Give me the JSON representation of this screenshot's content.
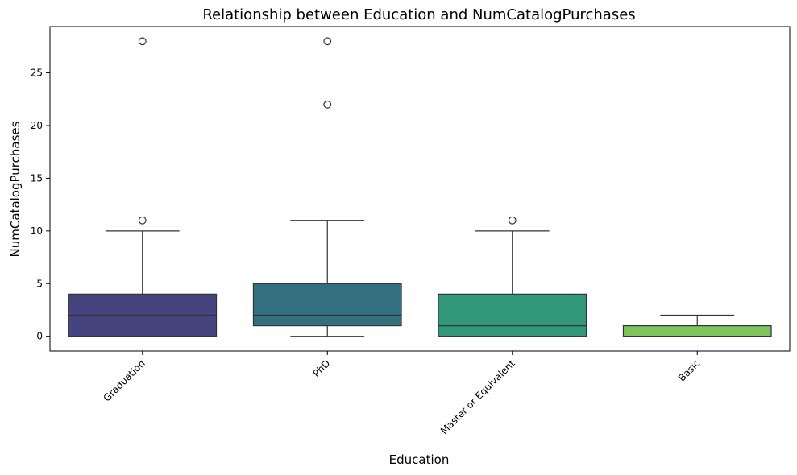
{
  "chart_data": {
    "type": "box",
    "title": "Relationship between Education and NumCatalogPurchases",
    "xlabel": "Education",
    "ylabel": "NumCatalogPurchases",
    "ylim": [
      -1.4,
      29.4
    ],
    "yticks": [
      0,
      5,
      10,
      15,
      20,
      25
    ],
    "grid": false,
    "categories": [
      "Graduation",
      "PhD",
      "Master or Equivalent",
      "Basic"
    ],
    "boxes": [
      {
        "category": "Graduation",
        "whisker_low": 0,
        "q1": 0,
        "median": 2,
        "q3": 4,
        "whisker_high": 10,
        "outliers": [
          11,
          28
        ],
        "color": "#46447f"
      },
      {
        "category": "PhD",
        "whisker_low": 0,
        "q1": 1,
        "median": 2,
        "q3": 5,
        "whisker_high": 11,
        "outliers": [
          22,
          28
        ],
        "color": "#33707f"
      },
      {
        "category": "Master or Equivalent",
        "whisker_low": 0,
        "q1": 0,
        "median": 1,
        "q3": 4,
        "whisker_high": 10,
        "outliers": [
          11
        ],
        "color": "#32987a"
      },
      {
        "category": "Basic",
        "whisker_low": 0,
        "q1": 0,
        "median": 0,
        "q3": 1,
        "whisker_high": 2,
        "outliers": [],
        "color": "#7dc45a"
      }
    ]
  }
}
